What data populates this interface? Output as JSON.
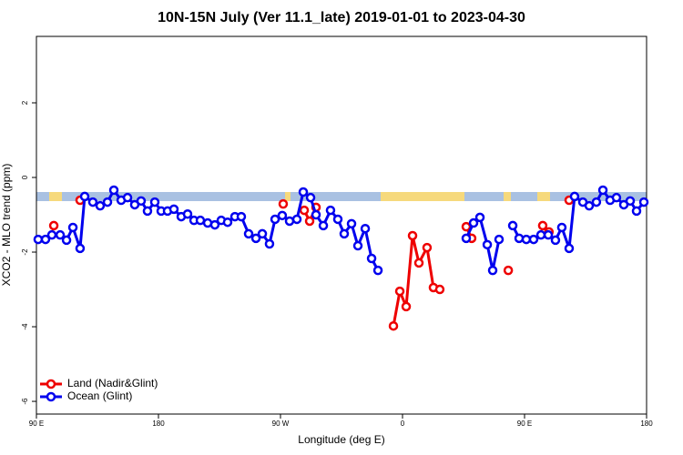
{
  "chart_data": {
    "type": "line",
    "title": "10N-15N July (Ver 11.1_late)   2019-01-01 to 2023-04-30",
    "x_label": "Longitude (deg E)",
    "y_label": "XCO2 - MLO trend (ppm)",
    "xlim": [
      90,
      540
    ],
    "xticks": [
      {
        "value": 90,
        "label": "90 E"
      },
      180,
      {
        "value": 270,
        "label": "90 W"
      },
      {
        "value": 360,
        "label": "0"
      },
      {
        "value": 450,
        "label": "90 E"
      },
      {
        "value": 540,
        "label": "180"
      }
    ],
    "ylim": [
      -6.34,
      3.78
    ],
    "yticks": [
      -6,
      -4,
      -2,
      0,
      2
    ],
    "legend": "bottom-left",
    "series": [
      {
        "name": "Land (Nadir&Glint)",
        "color": "#ee0000",
        "x": [
          102.8,
          null,
          122.2,
          null,
          272,
          null,
          287.5,
          291.5,
          296.2,
          null,
          353.3,
          358,
          362.7,
          367.4,
          372.1,
          378.1,
          382.8,
          387.5,
          null,
          407,
          411,
          null,
          438,
          null,
          463.4,
          468,
          null,
          482.9
        ],
        "values": [
          -1.29,
          null,
          -0.61,
          null,
          -0.71,
          null,
          -0.88,
          -1.17,
          -0.8,
          null,
          -3.98,
          -3.05,
          -3.46,
          -1.56,
          -2.29,
          -1.88,
          -2.95,
          -3.0,
          null,
          -1.32,
          -1.63,
          null,
          -2.49,
          null,
          -1.29,
          -1.46,
          null,
          -0.61
        ]
      },
      {
        "name": "Ocean (Glint)",
        "color": "#0000ee",
        "x": [
          91.3,
          96.7,
          101.4,
          107.5,
          112.2,
          116.9,
          122.2,
          125.6,
          131.6,
          137,
          142.4,
          147.1,
          152.5,
          157.2,
          162.5,
          167.2,
          171.9,
          177.3,
          182,
          186.7,
          191.4,
          196.8,
          201.5,
          206.2,
          210.9,
          216.3,
          221.6,
          226.3,
          231,
          236.4,
          241.1,
          246.5,
          251.9,
          256.6,
          261.9,
          266,
          271.3,
          276.7,
          282.1,
          286.8,
          292.2,
          296.2,
          301.6,
          306.9,
          312.3,
          317,
          322.4,
          327.1,
          332.5,
          337.2,
          341.9,
          null,
          407,
          412.4,
          417.1,
          422.5,
          426.5,
          431.2,
          null,
          441.3,
          446,
          451.3,
          456.7,
          462.1,
          467.5,
          472.8,
          477.5,
          482.9,
          486.9,
          493,
          497.7,
          503,
          507.8,
          513.1,
          517.8,
          523.2,
          527.9,
          532.6,
          538
        ],
        "values": [
          -1.66,
          -1.66,
          -1.54,
          -1.54,
          -1.68,
          -1.34,
          -1.9,
          -0.51,
          -0.66,
          -0.76,
          -0.66,
          -0.34,
          -0.61,
          -0.54,
          -0.73,
          -0.63,
          -0.9,
          -0.66,
          -0.9,
          -0.9,
          -0.85,
          -1.05,
          -0.98,
          -1.15,
          -1.15,
          -1.22,
          -1.27,
          -1.15,
          -1.2,
          -1.05,
          -1.05,
          -1.51,
          -1.63,
          -1.51,
          -1.78,
          -1.12,
          -1.02,
          -1.17,
          -1.12,
          -0.39,
          -0.54,
          -1.0,
          -1.29,
          -0.88,
          -1.12,
          -1.51,
          -1.24,
          -1.83,
          -1.37,
          -2.17,
          -2.49,
          null,
          -1.63,
          -1.22,
          -1.07,
          -1.8,
          -2.49,
          -1.66,
          null,
          -1.29,
          -1.63,
          -1.66,
          -1.66,
          -1.54,
          -1.54,
          -1.68,
          -1.34,
          -1.9,
          -0.51,
          -0.66,
          -0.76,
          -0.66,
          -0.34,
          -0.61,
          -0.54,
          -0.73,
          -0.63,
          -0.9,
          -0.66
        ]
      }
    ]
  }
}
